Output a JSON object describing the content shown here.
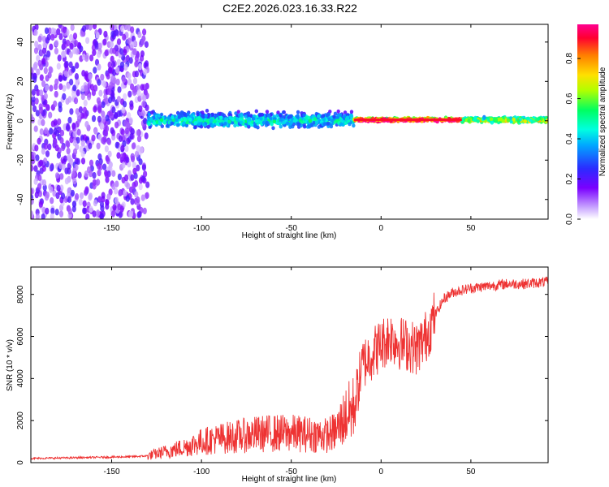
{
  "title": "C2E2.2026.023.16.33.R22",
  "chart_data": [
    {
      "type": "heatmap",
      "title": "C2E2.2026.023.16.33.R22",
      "xlabel": "Height of straight line (km)",
      "ylabel": "Frequency (Hz)",
      "xlim": [
        -195,
        93
      ],
      "ylim": [
        -50,
        49
      ],
      "x_ticks": [
        -150,
        -100,
        -50,
        0,
        50
      ],
      "y_ticks": [
        -40,
        -20,
        0,
        20,
        40
      ],
      "x_tick_labels": [
        "-150",
        "-100",
        "-50",
        "0",
        "50"
      ],
      "y_tick_labels": [
        "-40",
        "-20",
        "0",
        "20",
        "40"
      ],
      "colorbar": {
        "label": "Normalized spectral amplitude",
        "range": [
          0,
          0.97
        ],
        "ticks": [
          0.0,
          0.2,
          0.4,
          0.6,
          0.8
        ],
        "tick_labels": [
          "0.0",
          "0.2",
          "0.4",
          "0.6",
          "0.8"
        ],
        "colormap": "rainbow (white -> violet -> blue -> cyan -> green -> yellow -> orange -> red -> magenta)"
      },
      "description_of_field": [
        {
          "x_range": [
            -195,
            -130
          ],
          "frequency_spread_hz": 49,
          "amplitude": 0.12
        },
        {
          "x_range": [
            -130,
            -15
          ],
          "frequency_spread_hz": 5,
          "amplitude": 0.4
        },
        {
          "x_range": [
            -15,
            45
          ],
          "frequency_spread_hz": 2,
          "amplitude": 0.9
        },
        {
          "x_range": [
            45,
            93
          ],
          "frequency_spread_hz": 3,
          "amplitude": 0.55
        }
      ]
    },
    {
      "type": "line",
      "xlabel": "Height of straight line (km)",
      "ylabel": "SNR (10 * v/v)",
      "xlim": [
        -195,
        93
      ],
      "ylim": [
        0,
        9300
      ],
      "x_ticks": [
        -150,
        -100,
        -50,
        0,
        50
      ],
      "y_ticks": [
        0,
        2000,
        4000,
        6000,
        8000
      ],
      "x_tick_labels": [
        "-150",
        "-100",
        "-50",
        "0",
        "50"
      ],
      "y_tick_labels": [
        "0",
        "2000",
        "4000",
        "6000",
        "8000"
      ],
      "series": [
        {
          "name": "SNR",
          "color": "#ee3333",
          "x": [
            -195,
            -180,
            -160,
            -140,
            -130,
            -120,
            -110,
            -100,
            -90,
            -80,
            -70,
            -60,
            -50,
            -40,
            -30,
            -25,
            -20,
            -15,
            -12,
            -10,
            -5,
            0,
            5,
            10,
            15,
            20,
            25,
            30,
            35,
            40,
            45,
            50,
            60,
            70,
            80,
            93
          ],
          "y": [
            200,
            220,
            250,
            280,
            320,
            520,
            720,
            1000,
            1150,
            1250,
            1350,
            1400,
            1400,
            1350,
            1300,
            1500,
            2200,
            2600,
            4000,
            4700,
            5200,
            5600,
            6000,
            5700,
            5600,
            5400,
            6000,
            7000,
            7800,
            8100,
            8200,
            8300,
            8400,
            8500,
            8500,
            8600
          ]
        }
      ]
    }
  ]
}
